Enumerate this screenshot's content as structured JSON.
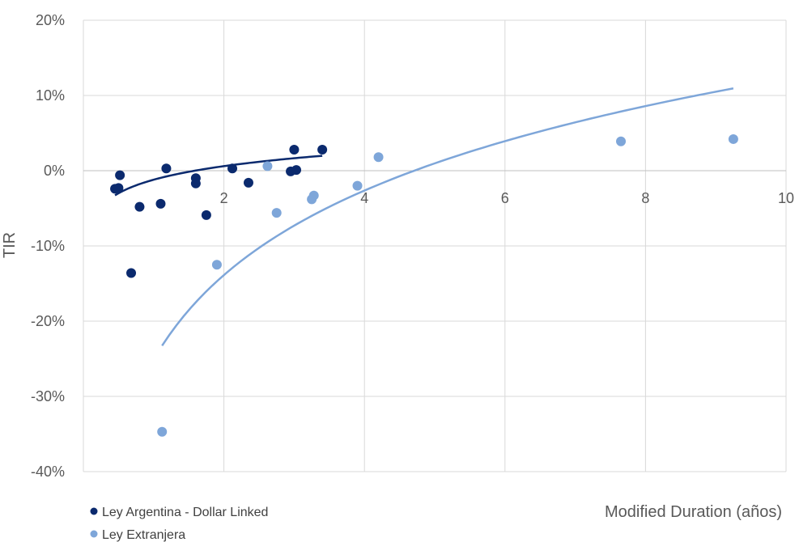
{
  "chart_data": {
    "type": "scatter",
    "title": "",
    "xlabel": "Modified Duration (años)",
    "ylabel": "TIR",
    "xlim": [
      0,
      10
    ],
    "ylim": [
      -40,
      20
    ],
    "x_ticks": [
      2,
      4,
      6,
      8,
      10
    ],
    "y_ticks": [
      20,
      10,
      0,
      -10,
      -20,
      -30,
      -40
    ],
    "y_tick_labels": [
      "20%",
      "10%",
      "0%",
      "-10%",
      "-20%",
      "-30%",
      "-40%"
    ],
    "grid": true,
    "legend_position": "bottom-left",
    "series": [
      {
        "name": "Ley Argentina - Dollar Linked",
        "color": "#0b2a6e",
        "points": [
          [
            0.45,
            -2.4
          ],
          [
            0.5,
            -2.3
          ],
          [
            0.52,
            -0.6
          ],
          [
            0.68,
            -13.6
          ],
          [
            0.8,
            -4.8
          ],
          [
            1.1,
            -4.4
          ],
          [
            1.18,
            0.3
          ],
          [
            1.6,
            -1.0
          ],
          [
            1.6,
            -1.7
          ],
          [
            1.75,
            -5.9
          ],
          [
            2.12,
            0.3
          ],
          [
            2.35,
            -1.6
          ],
          [
            2.95,
            -0.1
          ],
          [
            3.0,
            2.8
          ],
          [
            3.03,
            0.1
          ],
          [
            3.4,
            2.8
          ]
        ],
        "trend": {
          "type": "log",
          "a": -1.2,
          "b": 2.6,
          "x_start": 0.45,
          "x_end": 3.4
        }
      },
      {
        "name": "Ley Extranjera",
        "color": "#7ea6d9",
        "points": [
          [
            1.12,
            -34.7
          ],
          [
            1.9,
            -12.5
          ],
          [
            2.62,
            0.6
          ],
          [
            2.75,
            -5.6
          ],
          [
            3.25,
            -3.8
          ],
          [
            3.28,
            -3.3
          ],
          [
            3.9,
            -2.0
          ],
          [
            4.2,
            1.8
          ],
          [
            7.65,
            3.9
          ],
          [
            9.25,
            4.2
          ]
        ],
        "trend": {
          "type": "log",
          "a": -25.1,
          "b": 16.2,
          "x_start": 1.12,
          "x_end": 9.25
        }
      }
    ]
  }
}
